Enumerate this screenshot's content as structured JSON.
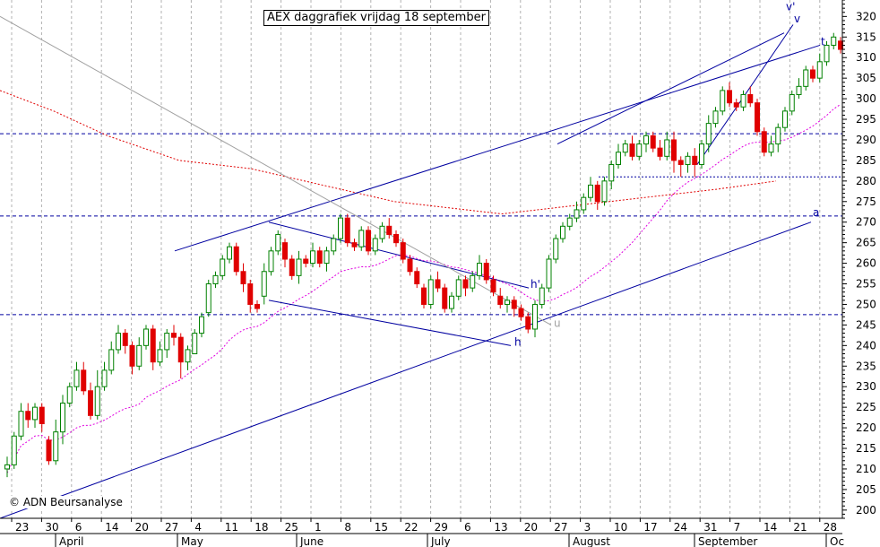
{
  "chart_data": {
    "type": "candlestick",
    "title": "AEX daggrafiek vrijdag 18 september",
    "credit": "© ADN Beursanalyse",
    "ylim": [
      198,
      324
    ],
    "y_ticks": [
      200,
      205,
      210,
      215,
      220,
      225,
      230,
      235,
      240,
      245,
      250,
      255,
      260,
      265,
      270,
      275,
      280,
      285,
      290,
      295,
      300,
      305,
      310,
      315,
      320
    ],
    "x_ticks": [
      "23",
      "30",
      "6",
      "14",
      "20",
      "27",
      "4",
      "11",
      "18",
      "25",
      "1",
      "8",
      "15",
      "22",
      "29",
      "6",
      "13",
      "20",
      "27",
      "3",
      "10",
      "17",
      "24",
      "31",
      "7",
      "14",
      "21",
      "28"
    ],
    "months": [
      "April",
      "May",
      "June",
      "July",
      "August",
      "September",
      "Oc"
    ],
    "horizontal_lines": [
      291.5,
      271.5,
      247.5,
      281
    ],
    "line_labels": [
      "t",
      "v",
      "v'",
      "a",
      "h",
      "h'",
      "u"
    ],
    "colors": {
      "up": "#008000",
      "down": "#e00000",
      "trend": "#0000a0",
      "grid": "#b0b0b0",
      "ma_long": "#e00000",
      "ma_short": "#e000e0",
      "u_line": "#a0a0a0"
    },
    "candles": [
      [
        210,
        211,
        213,
        208
      ],
      [
        211,
        218,
        219,
        210
      ],
      [
        218,
        224,
        226,
        217
      ],
      [
        224,
        222,
        226,
        220
      ],
      [
        222,
        225,
        226,
        220
      ],
      [
        225,
        221,
        226,
        219
      ],
      [
        217,
        212,
        218,
        211
      ],
      [
        212,
        219,
        222,
        211
      ],
      [
        219,
        226,
        228,
        216
      ],
      [
        226,
        230,
        231,
        225
      ],
      [
        230,
        234,
        236,
        229
      ],
      [
        234,
        229,
        236,
        228
      ],
      [
        229,
        223,
        231,
        222
      ],
      [
        223,
        230,
        234,
        222
      ],
      [
        230,
        234,
        236,
        229
      ],
      [
        234,
        239,
        241,
        233
      ],
      [
        239,
        243,
        245,
        238
      ],
      [
        243,
        240,
        244,
        238
      ],
      [
        240,
        235,
        241,
        233
      ],
      [
        235,
        240,
        242,
        234
      ],
      [
        240,
        244,
        245,
        239
      ],
      [
        244,
        236,
        245,
        234
      ],
      [
        236,
        239,
        241,
        235
      ],
      [
        239,
        243,
        244,
        237
      ],
      [
        243,
        242,
        245,
        240
      ],
      [
        242,
        236,
        243,
        232
      ],
      [
        236,
        239,
        240,
        234
      ],
      [
        238,
        243,
        244,
        238
      ],
      [
        243,
        247,
        248,
        242
      ],
      [
        248,
        255,
        256,
        247
      ],
      [
        255,
        257,
        258,
        254
      ],
      [
        257,
        261,
        262,
        256
      ],
      [
        261,
        264,
        265,
        260
      ],
      [
        264,
        258,
        265,
        257
      ],
      [
        258,
        255,
        260,
        253
      ],
      [
        255,
        250,
        256,
        248
      ],
      [
        250,
        249,
        251,
        248
      ],
      [
        252,
        258,
        260,
        250
      ],
      [
        258,
        263,
        264,
        257
      ],
      [
        263,
        267,
        268,
        262
      ],
      [
        265,
        261,
        266,
        259
      ],
      [
        261,
        257,
        262,
        256
      ],
      [
        257,
        261,
        263,
        255
      ],
      [
        261,
        260,
        262,
        259
      ],
      [
        260,
        263,
        265,
        259
      ],
      [
        263,
        260,
        264,
        259
      ],
      [
        260,
        263,
        264,
        258
      ],
      [
        263,
        266,
        267,
        262
      ],
      [
        266,
        271,
        272,
        265
      ],
      [
        271,
        265,
        272,
        264
      ],
      [
        265,
        264,
        266,
        263
      ],
      [
        264,
        268,
        269,
        263
      ],
      [
        268,
        263,
        269,
        262
      ],
      [
        263,
        266,
        267,
        262
      ],
      [
        266,
        269,
        270,
        265
      ],
      [
        269,
        267,
        271,
        266
      ],
      [
        267,
        265,
        268,
        264
      ],
      [
        265,
        261,
        266,
        260
      ],
      [
        261,
        258,
        262,
        257
      ],
      [
        258,
        255,
        259,
        254
      ],
      [
        254,
        250,
        255,
        249
      ],
      [
        250,
        256,
        257,
        249
      ],
      [
        256,
        254,
        258,
        253
      ],
      [
        254,
        249,
        255,
        248
      ],
      [
        249,
        252,
        253,
        248
      ],
      [
        252,
        256,
        257,
        251
      ],
      [
        256,
        254,
        257,
        252
      ],
      [
        254,
        257,
        258,
        253
      ],
      [
        257,
        260,
        262,
        256
      ],
      [
        260,
        256,
        261,
        255
      ],
      [
        256,
        253,
        257,
        252
      ],
      [
        252,
        250,
        254,
        249
      ],
      [
        250,
        251,
        252,
        248
      ],
      [
        251,
        249,
        252,
        247
      ],
      [
        249,
        247,
        250,
        246
      ],
      [
        247,
        244,
        248,
        243
      ],
      [
        244,
        250,
        251,
        242
      ],
      [
        250,
        254,
        255,
        249
      ],
      [
        254,
        261,
        262,
        253
      ],
      [
        261,
        266,
        267,
        260
      ],
      [
        266,
        269,
        270,
        265
      ],
      [
        269,
        271,
        272,
        268
      ],
      [
        271,
        273,
        275,
        270
      ],
      [
        273,
        276,
        277,
        272
      ],
      [
        276,
        279,
        281,
        275
      ],
      [
        279,
        275,
        280,
        273
      ],
      [
        275,
        280,
        281,
        274
      ],
      [
        280,
        284,
        285,
        278
      ],
      [
        284,
        287,
        289,
        283
      ],
      [
        287,
        289,
        290,
        286
      ],
      [
        289,
        286,
        291,
        285
      ],
      [
        286,
        289,
        290,
        285
      ],
      [
        289,
        291,
        292,
        287
      ],
      [
        291,
        288,
        292,
        287
      ],
      [
        288,
        286,
        290,
        285
      ],
      [
        286,
        290,
        292,
        285
      ],
      [
        290,
        285,
        292,
        282
      ],
      [
        285,
        284,
        286,
        281
      ],
      [
        284,
        286,
        287,
        282
      ],
      [
        286,
        284,
        288,
        281
      ],
      [
        284,
        289,
        290,
        283
      ],
      [
        289,
        294,
        296,
        287
      ],
      [
        294,
        297,
        298,
        293
      ],
      [
        297,
        302,
        303,
        296
      ],
      [
        302,
        299,
        304,
        298
      ],
      [
        299,
        298,
        300,
        297
      ],
      [
        298,
        301,
        302,
        297
      ],
      [
        301,
        299,
        303,
        298
      ],
      [
        299,
        292,
        300,
        291
      ],
      [
        292,
        287,
        293,
        286
      ],
      [
        287,
        289,
        291,
        286
      ],
      [
        289,
        293,
        294,
        287
      ],
      [
        293,
        297,
        298,
        292
      ],
      [
        297,
        301,
        302,
        296
      ],
      [
        301,
        303,
        305,
        300
      ],
      [
        303,
        307,
        308,
        302
      ],
      [
        307,
        305,
        308,
        304
      ],
      [
        305,
        309,
        311,
        304
      ],
      [
        309,
        313,
        314,
        308
      ],
      [
        313,
        315,
        316,
        312
      ],
      [
        314,
        312,
        315,
        311
      ]
    ]
  }
}
